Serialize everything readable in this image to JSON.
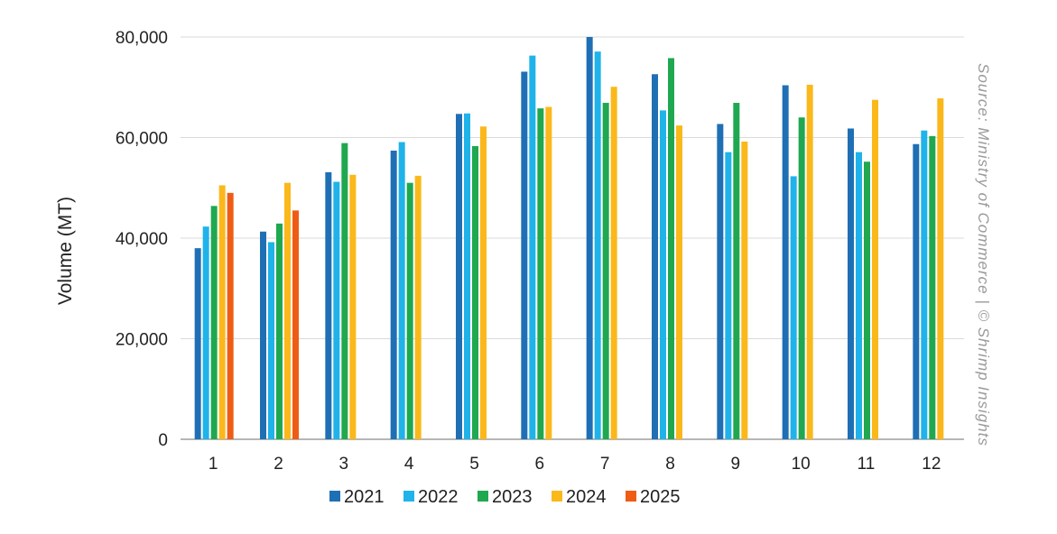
{
  "chart_data": {
    "type": "bar",
    "title": "",
    "xlabel": "",
    "ylabel": "Volume (MT)",
    "source": "Source: Ministry of Commerce | © Shrimp Insights",
    "categories": [
      "1",
      "2",
      "3",
      "4",
      "5",
      "6",
      "7",
      "8",
      "9",
      "10",
      "11",
      "12"
    ],
    "ylim": [
      0,
      80000
    ],
    "yticks": [
      0,
      20000,
      40000,
      60000,
      80000
    ],
    "ytick_labels": [
      "0",
      "20,000",
      "40,000",
      "60,000",
      "80,000"
    ],
    "grid": true,
    "legend_position": "bottom",
    "series": [
      {
        "name": "2021",
        "color": "#1f6fb5",
        "values": [
          38000,
          41300,
          53100,
          57400,
          64700,
          73100,
          80000,
          72600,
          62700,
          70400,
          61800,
          58700
        ]
      },
      {
        "name": "2022",
        "color": "#1fb3ea",
        "values": [
          42300,
          39200,
          51200,
          59100,
          64800,
          76300,
          77100,
          65400,
          57100,
          52300,
          57100,
          61400
        ]
      },
      {
        "name": "2023",
        "color": "#1fa84f",
        "values": [
          46400,
          42900,
          58900,
          51000,
          58300,
          65800,
          66900,
          75800,
          66900,
          64000,
          55200,
          60300
        ]
      },
      {
        "name": "2024",
        "color": "#fbb81b",
        "values": [
          50500,
          51000,
          52600,
          52400,
          62200,
          66100,
          70100,
          62400,
          59200,
          70500,
          67500,
          67800
        ]
      },
      {
        "name": "2025",
        "color": "#ee5c15",
        "values": [
          49000,
          45500,
          null,
          null,
          null,
          null,
          null,
          null,
          null,
          null,
          null,
          null
        ]
      }
    ]
  }
}
